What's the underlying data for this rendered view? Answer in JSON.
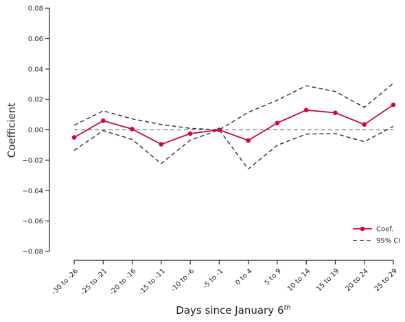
{
  "chart_data": {
    "type": "line",
    "title": "",
    "xlabel": "Days since January 6",
    "xlabel_superscript": "th",
    "ylabel": "Coefficient",
    "ylim": [
      -0.08,
      0.08
    ],
    "yticks": [
      -0.08,
      -0.06,
      -0.04,
      -0.02,
      0.0,
      0.02,
      0.04,
      0.06,
      0.08
    ],
    "ytick_labels": [
      "−0.08",
      "−0.06",
      "−0.04",
      "−0.02",
      "0.00",
      "0.02",
      "0.04",
      "0.06",
      "0.08"
    ],
    "categories": [
      "-30 to -26",
      "-25 to -21",
      "-20 to -16",
      "-15 to -11",
      "-10 to -6",
      "-5 to -1",
      "0 to 4",
      "5 to 9",
      "10 to 14",
      "15 to 19",
      "20 to 24",
      "25 to 29"
    ],
    "series": [
      {
        "name": "Coef.",
        "color": "#d0053f",
        "style": "solid",
        "marker": "circle",
        "values": [
          -0.005,
          0.006,
          0.0005,
          -0.0095,
          -0.0025,
          0.0,
          -0.007,
          0.0045,
          0.013,
          0.0112,
          0.0035,
          0.0165
        ]
      },
      {
        "name": "95% CI",
        "color": "#3a3a3a",
        "style": "dashed",
        "marker": "none",
        "values": [
          0.003,
          0.0125,
          0.0072,
          0.0035,
          0.001,
          0.0,
          0.0115,
          0.0195,
          0.029,
          0.0252,
          0.0148,
          0.0306
        ]
      },
      {
        "name": "",
        "color": "#3a3a3a",
        "style": "dashed",
        "marker": "none",
        "values": [
          -0.0135,
          -0.0005,
          -0.0063,
          -0.0222,
          -0.0068,
          0.0,
          -0.0258,
          -0.0102,
          -0.0028,
          -0.0025,
          -0.0078,
          0.0023
        ]
      }
    ],
    "reference_line": {
      "y": 0.0,
      "color": "#777777",
      "style": "dashed"
    },
    "legend": {
      "placement": "lower-right",
      "entries": [
        "Coef.",
        "95% CI"
      ]
    },
    "grid": false
  }
}
